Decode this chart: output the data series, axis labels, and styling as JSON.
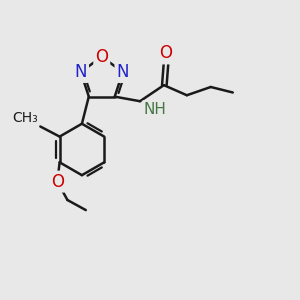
{
  "background_color": "#e8e8e8",
  "bond_color": "#1a1a1a",
  "figsize": [
    3.0,
    3.0
  ],
  "dpi": 100,
  "xlim": [
    0.0,
    6.5
  ],
  "ylim": [
    -1.0,
    4.5
  ]
}
